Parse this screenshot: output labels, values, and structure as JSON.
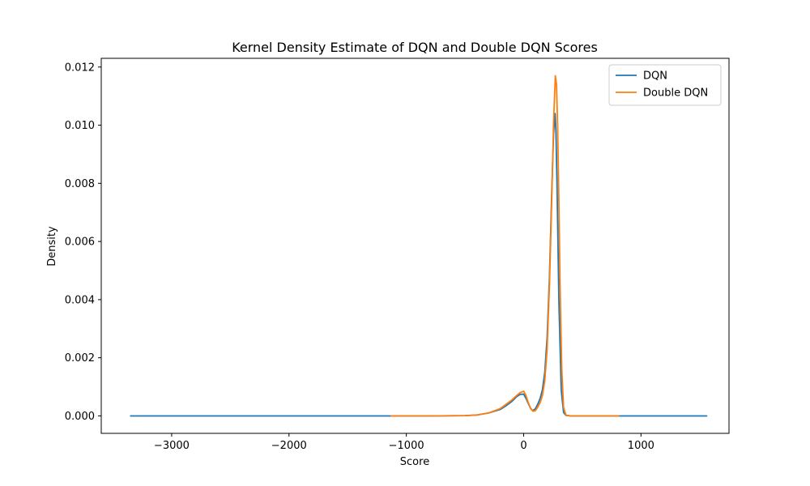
{
  "chart_data": {
    "type": "line",
    "title": "Kernel Density Estimate of DQN and Double DQN Scores",
    "xlabel": "Score",
    "ylabel": "Density",
    "xlim": [
      -3600,
      1750
    ],
    "ylim": [
      -0.0006,
      0.0123
    ],
    "xticks": [
      -3000,
      -2000,
      -1000,
      0,
      1000
    ],
    "xtick_labels": [
      "−3000",
      "−2000",
      "−1000",
      "0",
      "1000"
    ],
    "yticks": [
      0.0,
      0.002,
      0.004,
      0.006,
      0.008,
      0.01,
      0.012
    ],
    "ytick_labels": [
      "0.000",
      "0.002",
      "0.004",
      "0.006",
      "0.008",
      "0.010",
      "0.012"
    ],
    "grid": false,
    "legend": "top-right",
    "series": [
      {
        "name": "DQN",
        "color": "#1f77b4",
        "x": [
          -3350,
          -2500,
          -1500,
          -800,
          -500,
          -400,
          -300,
          -200,
          -150,
          -100,
          -60,
          -30,
          0,
          20,
          40,
          60,
          80,
          100,
          120,
          140,
          160,
          180,
          200,
          220,
          240,
          255,
          268,
          275,
          285,
          300,
          320,
          340,
          360,
          400,
          600,
          1000,
          1560
        ],
        "y": [
          0.0,
          0.0,
          0.0,
          0.0,
          1e-05,
          3e-05,
          0.0001,
          0.00022,
          0.00035,
          0.0005,
          0.00066,
          0.00074,
          0.00075,
          0.0006,
          0.00042,
          0.00025,
          0.00018,
          0.00025,
          0.0004,
          0.0006,
          0.0009,
          0.0015,
          0.0027,
          0.0048,
          0.0078,
          0.0097,
          0.0104,
          0.0098,
          0.0078,
          0.004,
          0.0009,
          0.00012,
          2e-05,
          0.0,
          0.0,
          0.0,
          0.0
        ]
      },
      {
        "name": "Double DQN",
        "color": "#ff7f0e",
        "x": [
          -1130,
          -800,
          -500,
          -400,
          -300,
          -200,
          -150,
          -100,
          -60,
          -30,
          0,
          20,
          40,
          60,
          80,
          100,
          120,
          140,
          160,
          180,
          200,
          220,
          240,
          255,
          270,
          280,
          290,
          300,
          310,
          325,
          340,
          360,
          400,
          600,
          810
        ],
        "y": [
          0.0,
          0.0,
          1e-05,
          3e-05,
          0.0001,
          0.00025,
          0.0004,
          0.00055,
          0.0007,
          0.0008,
          0.00085,
          0.0007,
          0.00045,
          0.00025,
          0.00016,
          0.00018,
          0.0003,
          0.00045,
          0.0007,
          0.0012,
          0.0023,
          0.0045,
          0.0075,
          0.0101,
          0.0117,
          0.0114,
          0.0099,
          0.0074,
          0.0046,
          0.0016,
          0.0003,
          3e-05,
          0.0,
          0.0,
          0.0
        ]
      }
    ]
  }
}
